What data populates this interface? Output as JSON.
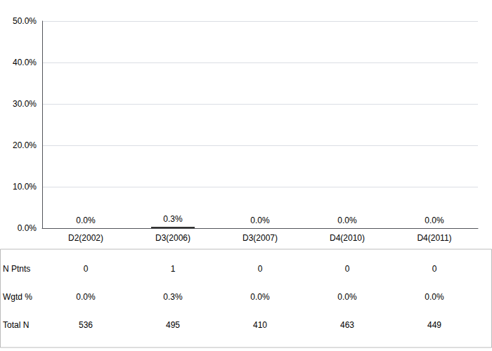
{
  "chart_data": {
    "type": "bar",
    "categories": [
      "D2(2002)",
      "D3(2006)",
      "D3(2007)",
      "D4(2010)",
      "D4(2011)"
    ],
    "values": [
      0.0,
      0.3,
      0.0,
      0.0,
      0.0
    ],
    "value_labels": [
      "0.0%",
      "0.3%",
      "0.0%",
      "0.0%",
      "0.0%"
    ],
    "data_labels": true,
    "color": "#1a1a1a",
    "ylim": [
      0,
      50
    ],
    "yticks": [
      {
        "value": 0,
        "label": "0.0%"
      },
      {
        "value": 10,
        "label": "10.0%"
      },
      {
        "value": 20,
        "label": "20.0%"
      },
      {
        "value": 30,
        "label": "30.0%"
      },
      {
        "value": 40,
        "label": "40.0%"
      },
      {
        "value": 50,
        "label": "50.0%"
      }
    ],
    "grid": true,
    "table": [
      {
        "label": "N Ptnts",
        "values": [
          "0",
          "1",
          "0",
          "0",
          "0"
        ]
      },
      {
        "label": "Wgtd %",
        "values": [
          "0.0%",
          "0.3%",
          "0.0%",
          "0.0%",
          "0.0%"
        ]
      },
      {
        "label": "Total N",
        "values": [
          "536",
          "495",
          "410",
          "463",
          "449"
        ]
      }
    ]
  }
}
